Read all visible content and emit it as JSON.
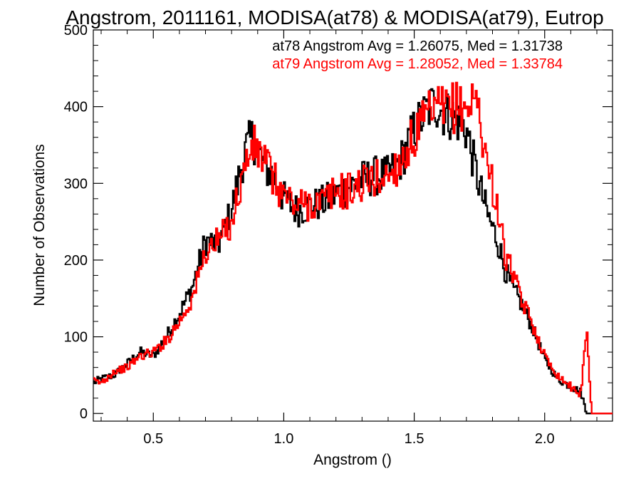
{
  "chart_data": {
    "type": "line",
    "style": "histogram-step",
    "title": "Angstrom, 2011161, MODISA(at78) & MODISA(at79), Eutrop",
    "xlabel": "Angstrom ()",
    "ylabel": "Number of Observations",
    "xlim": [
      0.27,
      2.26
    ],
    "ylim": [
      -10,
      500
    ],
    "x_ticks": [
      0.5,
      1.0,
      1.5,
      2.0
    ],
    "x_tick_labels": [
      "0.5",
      "1.0",
      "1.5",
      "2.0"
    ],
    "y_ticks": [
      0,
      100,
      200,
      300,
      400,
      500
    ],
    "y_tick_labels": [
      "0",
      "100",
      "200",
      "300",
      "400",
      "500"
    ],
    "grid": false,
    "legend_position": "top-right",
    "annotations": [
      {
        "text": "at78 Angstrom Avg = 1.26075, Med = 1.31738",
        "color": "#000000"
      },
      {
        "text": "at79 Angstrom Avg = 1.28052, Med = 1.33784",
        "color": "#ff0000"
      }
    ],
    "x": [
      0.27,
      0.3,
      0.35,
      0.4,
      0.45,
      0.5,
      0.55,
      0.6,
      0.65,
      0.7,
      0.75,
      0.8,
      0.85,
      0.88,
      0.9,
      0.93,
      0.96,
      1.0,
      1.05,
      1.1,
      1.15,
      1.2,
      1.25,
      1.3,
      1.35,
      1.4,
      1.45,
      1.5,
      1.55,
      1.58,
      1.62,
      1.66,
      1.7,
      1.74,
      1.78,
      1.82,
      1.85,
      1.88,
      1.9,
      1.95,
      2.0,
      2.05,
      2.1,
      2.14,
      2.16,
      2.18,
      2.26
    ],
    "series": [
      {
        "name": "at78",
        "color": "#000000",
        "values": [
          40,
          45,
          50,
          65,
          80,
          75,
          100,
          130,
          165,
          225,
          220,
          265,
          340,
          360,
          345,
          320,
          310,
          280,
          265,
          270,
          275,
          285,
          295,
          305,
          310,
          310,
          330,
          370,
          395,
          405,
          390,
          385,
          370,
          310,
          260,
          225,
          185,
          160,
          150,
          115,
          70,
          45,
          35,
          28,
          0,
          0,
          0
        ]
      },
      {
        "name": "at79",
        "color": "#ff0000",
        "values": [
          42,
          40,
          55,
          60,
          75,
          80,
          95,
          120,
          150,
          210,
          225,
          250,
          320,
          350,
          340,
          330,
          305,
          285,
          270,
          275,
          275,
          290,
          290,
          300,
          305,
          310,
          330,
          360,
          385,
          395,
          395,
          400,
          400,
          410,
          325,
          270,
          200,
          185,
          155,
          120,
          75,
          50,
          35,
          25,
          115,
          0,
          0
        ]
      }
    ]
  }
}
